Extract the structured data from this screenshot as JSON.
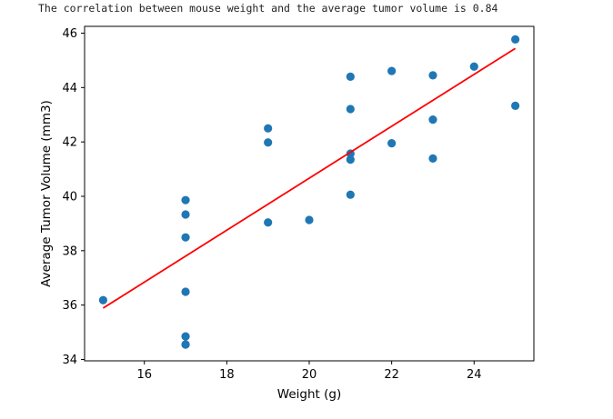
{
  "output_text": "The correlation between mouse weight and the average tumor volume is 0.84",
  "chart_data": {
    "type": "scatter",
    "title": "",
    "xlabel": "Weight (g)",
    "ylabel": "Average Tumor Volume (mm3)",
    "xlim": [
      14.55,
      25.45
    ],
    "ylim": [
      33.95,
      46.25
    ],
    "xticks": [
      16,
      18,
      20,
      22,
      24
    ],
    "yticks": [
      34,
      36,
      38,
      40,
      42,
      44,
      46
    ],
    "xtick_labels": [
      "16",
      "18",
      "20",
      "22",
      "24"
    ],
    "ytick_labels": [
      "34",
      "36",
      "38",
      "40",
      "42",
      "44",
      "46"
    ],
    "grid": false,
    "legend": "none",
    "series": [
      {
        "kind": "scatter",
        "color": "#1f77b4",
        "x": [
          15,
          17,
          17,
          17,
          17,
          17,
          17,
          17,
          19,
          19,
          19,
          20,
          21,
          21,
          21,
          21,
          21,
          22,
          22,
          23,
          23,
          23,
          24,
          25,
          25
        ],
        "y": [
          36.18,
          39.86,
          39.33,
          38.49,
          36.49,
          34.85,
          34.55,
          34.55,
          42.5,
          41.98,
          39.04,
          39.13,
          44.4,
          43.21,
          41.57,
          41.35,
          40.06,
          44.61,
          41.95,
          44.45,
          42.82,
          41.39,
          44.77,
          45.77,
          43.33
        ]
      },
      {
        "kind": "line",
        "color": "#ff0000",
        "x": [
          15,
          25
        ],
        "y": [
          35.89,
          45.44
        ]
      }
    ]
  }
}
